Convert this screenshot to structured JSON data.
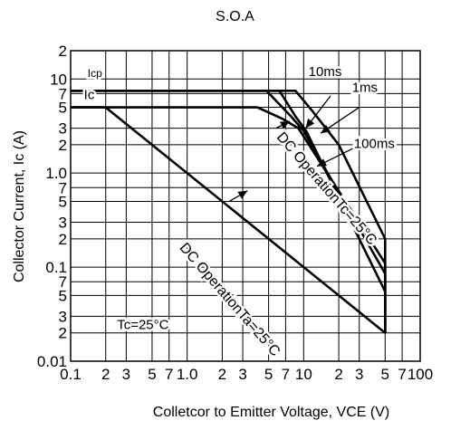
{
  "chart_data": {
    "type": "line",
    "title": "S.O.A",
    "xlabel": "Colletcor to Emitter Voltage, VCE (V)",
    "ylabel": "Collector Current, Ic (A)",
    "xscale": "log",
    "yscale": "log",
    "xlim": [
      0.1,
      100
    ],
    "ylim": [
      0.01,
      20
    ],
    "grid": true,
    "x_tick_labels": [
      {
        "v": 0.1,
        "t": "0.1"
      },
      {
        "v": 0.2,
        "t": "2"
      },
      {
        "v": 0.3,
        "t": "3"
      },
      {
        "v": 0.5,
        "t": "5"
      },
      {
        "v": 0.7,
        "t": "7"
      },
      {
        "v": 1,
        "t": "1.0"
      },
      {
        "v": 2,
        "t": "2"
      },
      {
        "v": 3,
        "t": "3"
      },
      {
        "v": 5,
        "t": "5"
      },
      {
        "v": 7,
        "t": "7"
      },
      {
        "v": 10,
        "t": "10"
      },
      {
        "v": 20,
        "t": "2"
      },
      {
        "v": 30,
        "t": "3"
      },
      {
        "v": 50,
        "t": "5"
      },
      {
        "v": 70,
        "t": "7"
      },
      {
        "v": 100,
        "t": "100"
      }
    ],
    "y_tick_labels": [
      {
        "v": 0.01,
        "t": "0.01"
      },
      {
        "v": 0.02,
        "t": "2"
      },
      {
        "v": 0.03,
        "t": "3"
      },
      {
        "v": 0.05,
        "t": "5"
      },
      {
        "v": 0.07,
        "t": "7"
      },
      {
        "v": 0.1,
        "t": "0.1"
      },
      {
        "v": 0.2,
        "t": "2"
      },
      {
        "v": 0.3,
        "t": "3"
      },
      {
        "v": 0.5,
        "t": "5"
      },
      {
        "v": 0.7,
        "t": "7"
      },
      {
        "v": 1,
        "t": "1.0"
      },
      {
        "v": 2,
        "t": "2"
      },
      {
        "v": 3,
        "t": "3"
      },
      {
        "v": 5,
        "t": "5"
      },
      {
        "v": 7,
        "t": "7"
      },
      {
        "v": 10,
        "t": "10"
      },
      {
        "v": 20,
        "t": "2"
      }
    ],
    "series": [
      {
        "name": "10ms",
        "points": [
          [
            0.1,
            7.5
          ],
          [
            6.2,
            7.5
          ],
          [
            8.5,
            4.0
          ],
          [
            10.5,
            2.8
          ],
          [
            50,
            0.055
          ],
          [
            50,
            0.02
          ]
        ]
      },
      {
        "name": "1ms",
        "points": [
          [
            0.1,
            7.5
          ],
          [
            8.5,
            7.5
          ],
          [
            12,
            4.5
          ],
          [
            20,
            2.0
          ],
          [
            50,
            0.2
          ],
          [
            50,
            0.02
          ]
        ]
      },
      {
        "name": "100ms",
        "points": [
          [
            0.1,
            7.5
          ],
          [
            4.8,
            7.5
          ],
          [
            7.8,
            4.0
          ],
          [
            10,
            2.8
          ],
          [
            50,
            0.085
          ],
          [
            50,
            0.02
          ]
        ]
      },
      {
        "name": "DC OperationTc=25°C",
        "points": [
          [
            0.1,
            5.0
          ],
          [
            4.0,
            5.0
          ],
          [
            6.5,
            3.8
          ],
          [
            9.0,
            3.0
          ],
          [
            50,
            0.11
          ],
          [
            50,
            0.02
          ]
        ]
      },
      {
        "name": "DC OperationTa=25°C",
        "points": [
          [
            0.1,
            5.0
          ],
          [
            0.2,
            5.0
          ],
          [
            50,
            0.02
          ]
        ]
      }
    ],
    "annotations": [
      {
        "text": "Icp",
        "x": 0.14,
        "y": 10.5
      },
      {
        "text": "Ic",
        "x": 0.13,
        "y": 6.1
      },
      {
        "text": "10ms",
        "x": 11,
        "y": 10.8
      },
      {
        "text": "1ms",
        "x": 26,
        "y": 7.3
      },
      {
        "text": "100ms",
        "x": 27,
        "y": 1.85
      },
      {
        "text": "DC OperationTc=25°C",
        "x": 5.8,
        "y": 2.4
      },
      {
        "text": "DC OperationTa=25°C",
        "x": 0.85,
        "y": 0.16
      },
      {
        "text": "Tc=25°C",
        "x": 0.25,
        "y": 0.022
      }
    ],
    "arrows": [
      {
        "from": [
          17,
          6.6
        ],
        "to": [
          10.4,
          3.0
        ]
      },
      {
        "from": [
          30,
          5.0
        ],
        "to": [
          14,
          2.65
        ]
      },
      {
        "from": [
          27,
          1.85
        ],
        "to": [
          13,
          1.18
        ]
      },
      {
        "from": [
          5.8,
          3.0
        ],
        "to": [
          7.6,
          3.55
        ]
      },
      {
        "from": [
          2.3,
          0.5
        ],
        "to": [
          3.3,
          0.65
        ]
      }
    ]
  }
}
